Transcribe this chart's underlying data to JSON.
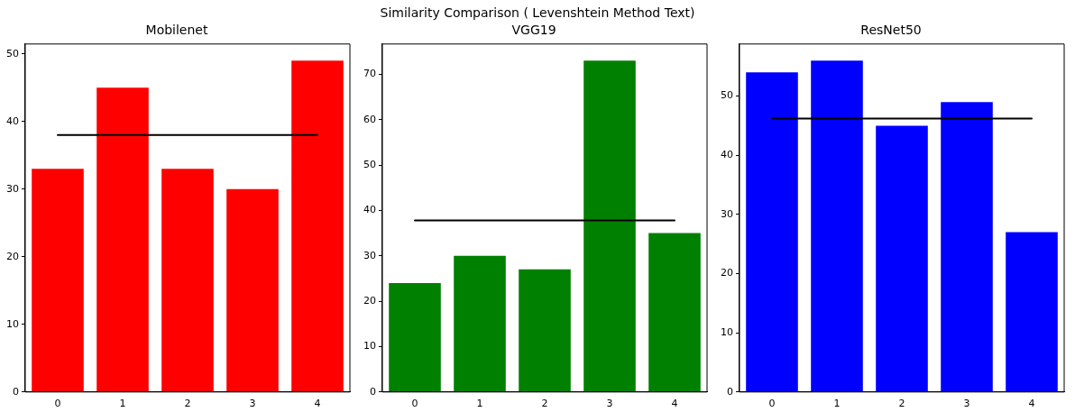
{
  "chart_data": [
    {
      "type": "bar",
      "title": "Mobilenet",
      "categories": [
        "0",
        "1",
        "2",
        "3",
        "4"
      ],
      "ylim": [
        0,
        51.45
      ],
      "yticks": [
        0,
        10,
        20,
        30,
        40,
        50
      ],
      "ref_lines": [
        {
          "axis": "y",
          "value": 38,
          "color": "#000000"
        }
      ],
      "series": [
        {
          "color": "#ff0000",
          "values": [
            33,
            45,
            33,
            30,
            49
          ]
        }
      ]
    },
    {
      "type": "bar",
      "title": "VGG19",
      "categories": [
        "0",
        "1",
        "2",
        "3",
        "4"
      ],
      "ylim": [
        0,
        76.65
      ],
      "yticks": [
        0,
        10,
        20,
        30,
        40,
        50,
        60,
        70
      ],
      "ref_lines": [
        {
          "axis": "y",
          "value": 37.8,
          "color": "#000000"
        }
      ],
      "series": [
        {
          "color": "#008000",
          "values": [
            24,
            30,
            27,
            73,
            35
          ]
        }
      ]
    },
    {
      "type": "bar",
      "title": "ResNet50",
      "categories": [
        "0",
        "1",
        "2",
        "3",
        "4"
      ],
      "ylim": [
        0,
        58.8
      ],
      "yticks": [
        0,
        10,
        20,
        30,
        40,
        50
      ],
      "annotations": [
        "Similarity Comparison ( Levenshtein Method Text)"
      ],
      "ref_lines": [
        {
          "axis": "y",
          "value": 46.2,
          "color": "#000000"
        }
      ],
      "series": [
        {
          "color": "#0000ff",
          "values": [
            54,
            56,
            45,
            49,
            27
          ]
        }
      ]
    }
  ]
}
